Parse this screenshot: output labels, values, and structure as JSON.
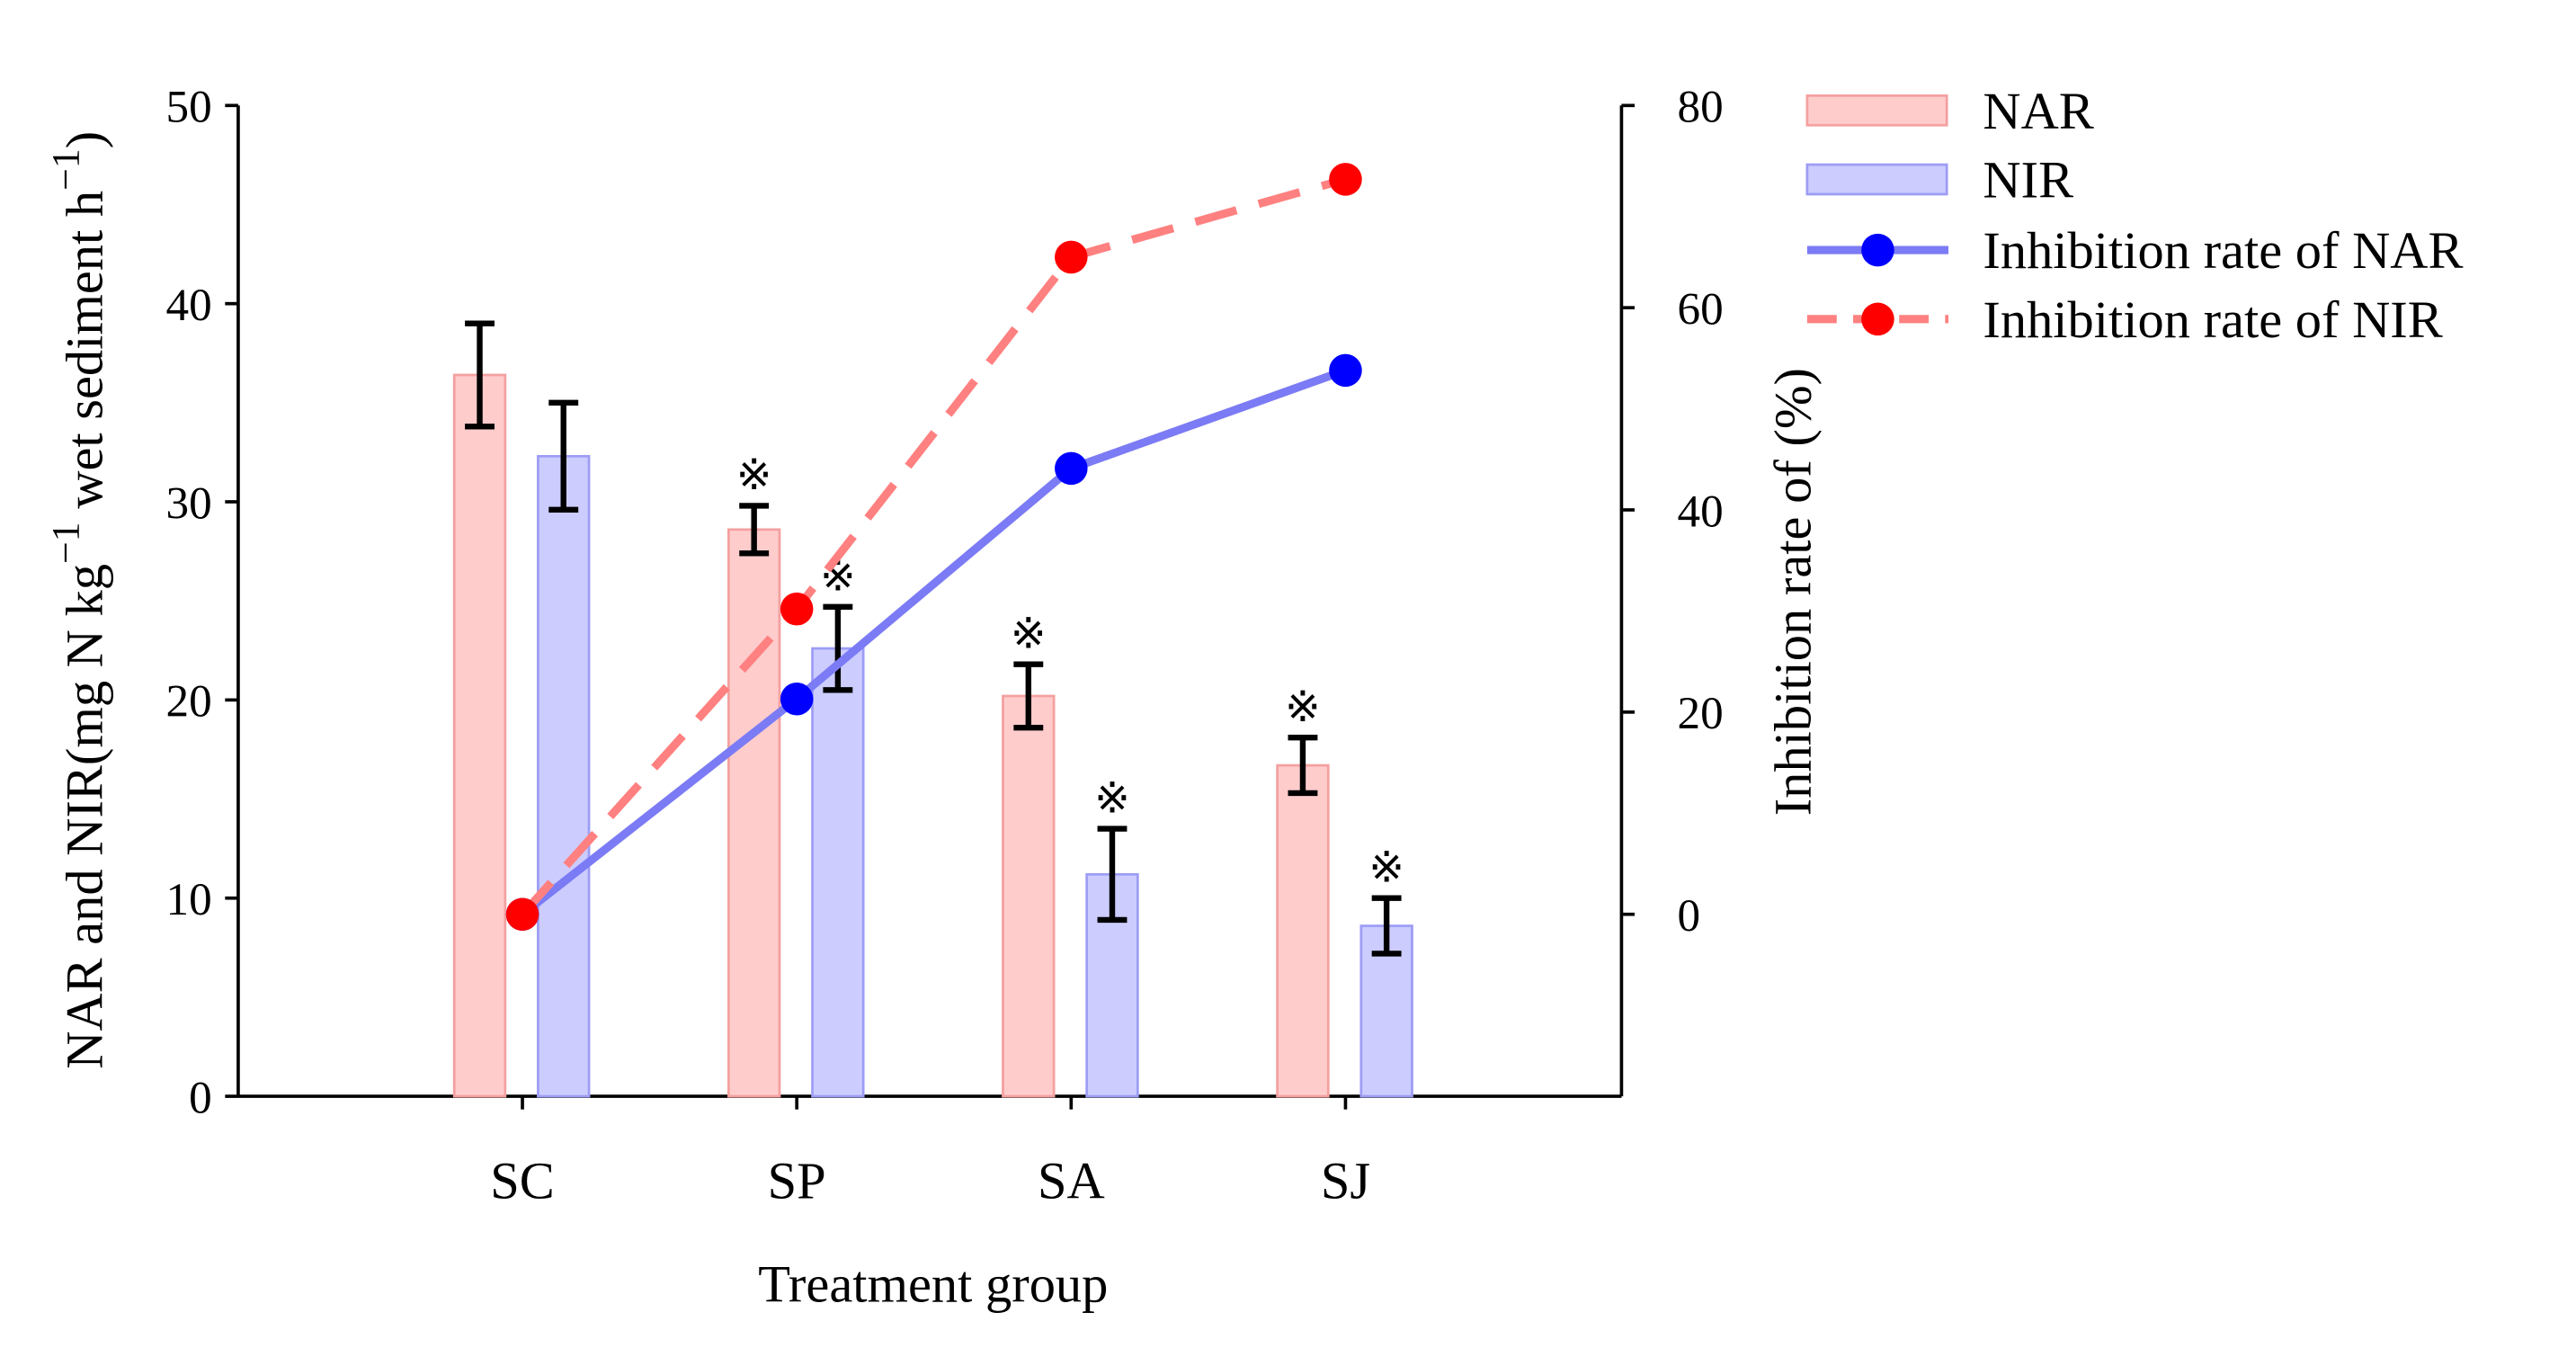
{
  "chart_data": {
    "type": "bar+line",
    "categories": [
      "SC",
      "SP",
      "SA",
      "SJ"
    ],
    "xlabel": "Treatment group",
    "ylabel": "NAR and NIR(mg N kg",
    "ylabel_parts": [
      "NAR and NIR(mg N kg",
      "−1",
      " wet sediment h",
      "−1",
      ")"
    ],
    "y2label": "Inhibition rate of (%)",
    "ylim": [
      0,
      50
    ],
    "yticks": [
      0,
      10,
      20,
      30,
      40,
      50
    ],
    "y2lim": [
      -18,
      80
    ],
    "y2ticks": [
      0,
      20,
      40,
      60,
      80
    ],
    "bar_series": [
      {
        "name": "NAR",
        "values": [
          36.4,
          28.6,
          20.2,
          16.7
        ],
        "errors": [
          2.6,
          1.2,
          1.6,
          1.4
        ],
        "significant": [
          false,
          true,
          true,
          true
        ],
        "color": "#ffcccc",
        "edge": "#f4a0a0"
      },
      {
        "name": "NIR",
        "values": [
          32.3,
          22.6,
          11.2,
          8.6
        ],
        "errors": [
          2.7,
          2.1,
          2.3,
          1.4
        ],
        "significant": [
          false,
          true,
          true,
          true
        ],
        "color": "#ccccff",
        "edge": "#9d9df5"
      }
    ],
    "line_series": [
      {
        "name": "Inhibition rate of NAR",
        "values": [
          0,
          21.3,
          44.1,
          53.8
        ],
        "axis": "right",
        "line_color": "#7b7bf5",
        "marker_color": "#0000ff",
        "dash": false
      },
      {
        "name": "Inhibition rate of NIR",
        "values": [
          0,
          30.2,
          65.0,
          72.7
        ],
        "axis": "right",
        "line_color": "#ff8080",
        "marker_color": "#ff0000",
        "dash": true
      }
    ],
    "significance_marker": "※",
    "legend": "top-right",
    "grid": false
  }
}
